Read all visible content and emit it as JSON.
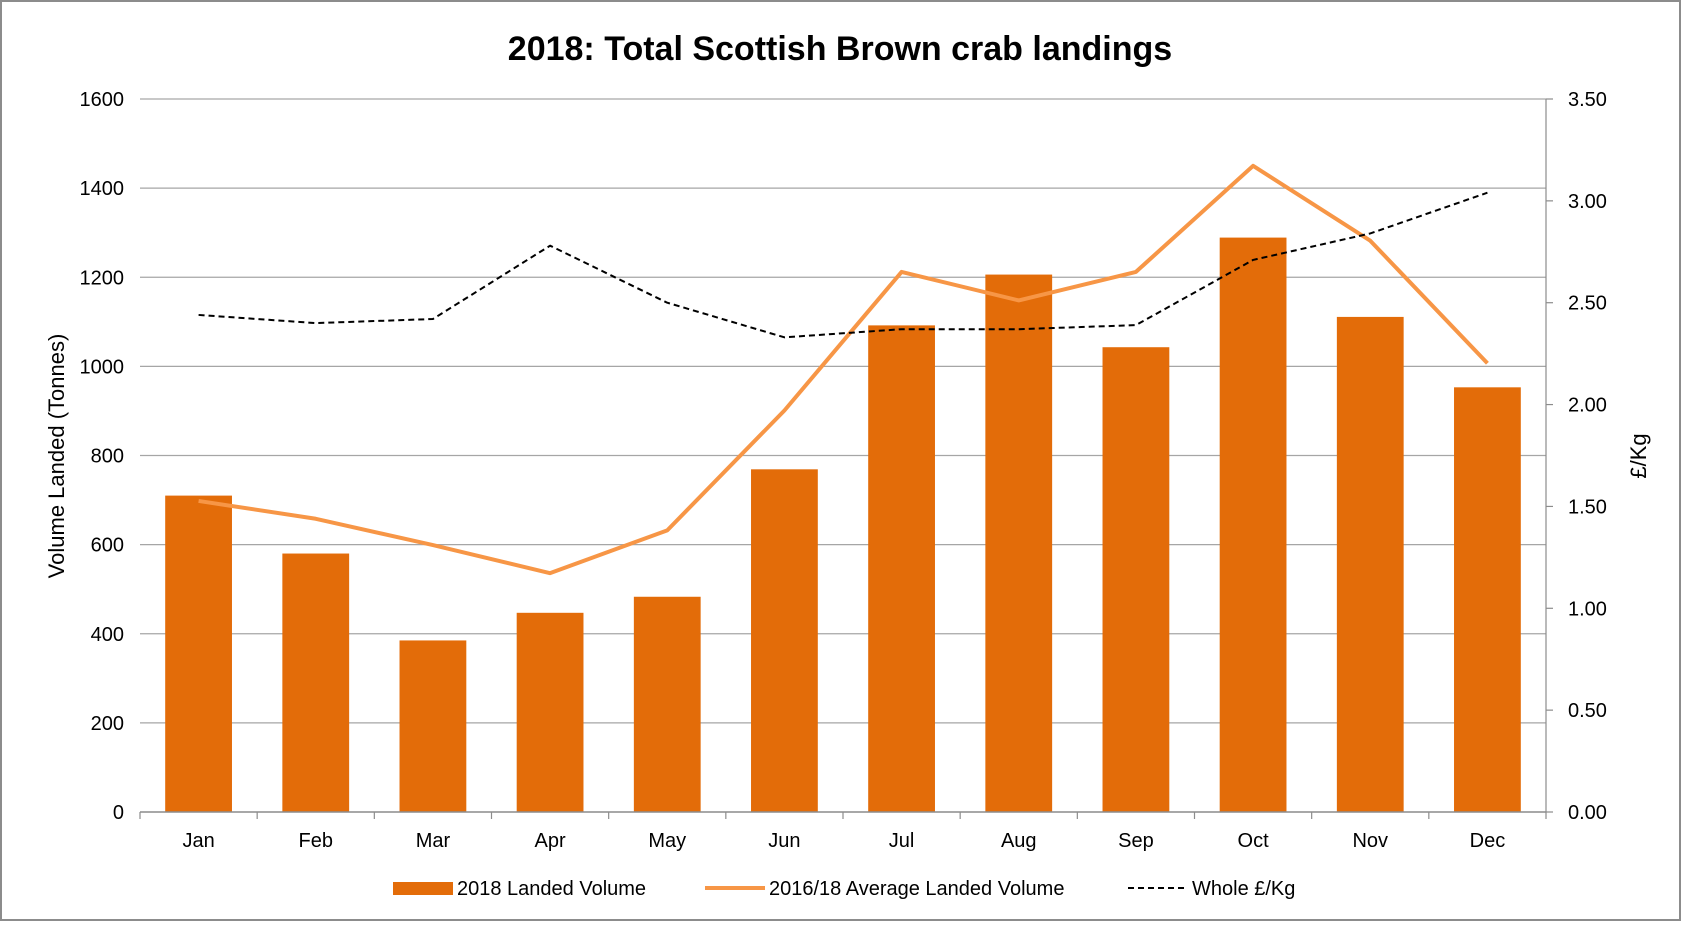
{
  "chart_data": {
    "type": "bar",
    "title": "2018: Total Scottish Brown crab landings",
    "ylabel": "Volume Landed (Tonnes)",
    "y2label": "£/Kg",
    "categories": [
      "Jan",
      "Feb",
      "Mar",
      "Apr",
      "May",
      "Jun",
      "Jul",
      "Aug",
      "Sep",
      "Oct",
      "Nov",
      "Dec"
    ],
    "ylim": [
      0,
      1600
    ],
    "yticks": [
      "0",
      "200",
      "400",
      "600",
      "800",
      "1000",
      "1200",
      "1400",
      "1600"
    ],
    "y2lim": [
      0,
      3.5
    ],
    "y2ticks": [
      "0.00",
      "0.50",
      "1.00",
      "1.50",
      "2.00",
      "2.50",
      "3.00",
      "3.50"
    ],
    "grid": true,
    "legend_position": "bottom",
    "series": [
      {
        "name": "2018  Landed Volume",
        "type": "bar",
        "axis": "left",
        "color": "#E36C09",
        "values": [
          710,
          580,
          385,
          447,
          483,
          769,
          1092,
          1206,
          1043,
          1289,
          1111,
          953
        ]
      },
      {
        "name": "2016/18 Average Landed Volume",
        "type": "line",
        "axis": "left",
        "color": "#F79646",
        "values": [
          698,
          658,
          599,
          536,
          632,
          901,
          1212,
          1148,
          1212,
          1450,
          1282,
          1007
        ]
      },
      {
        "name": "Whole £/Kg",
        "type": "line",
        "axis": "right",
        "color": "#000000",
        "dash": true,
        "values": [
          2.44,
          2.4,
          2.42,
          2.78,
          2.5,
          2.33,
          2.37,
          2.37,
          2.39,
          2.71,
          2.84,
          3.04
        ]
      }
    ]
  }
}
